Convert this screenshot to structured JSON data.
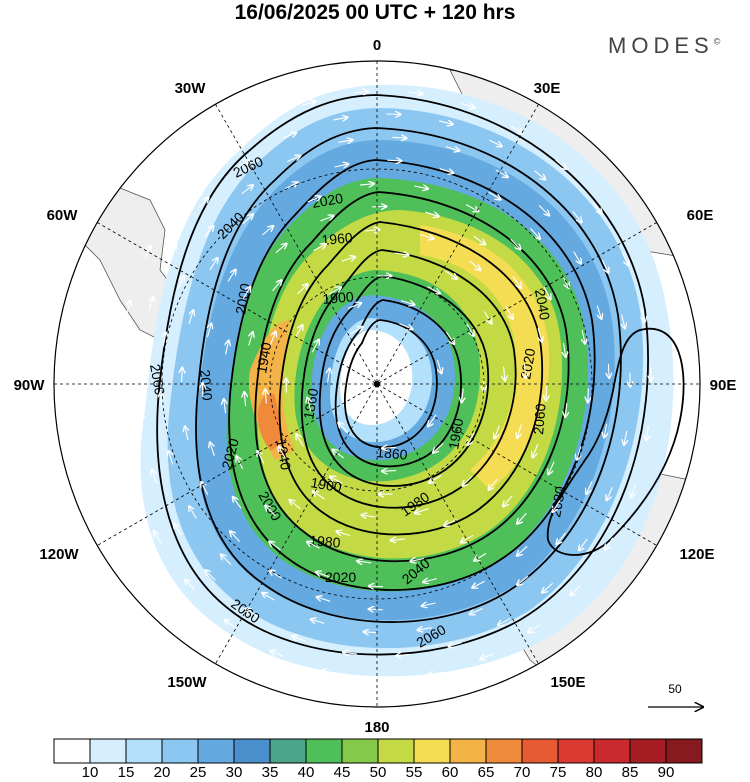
{
  "title": "16/06/2025  00 UTC  + 120 hrs",
  "brand": "MODES",
  "brand_mark": "©",
  "longitude_labels": [
    "0",
    "30E",
    "60E",
    "90E",
    "120E",
    "150E",
    "180",
    "150W",
    "120W",
    "90W",
    "60W",
    "30W"
  ],
  "reference_vector_label": "50",
  "colorbar": {
    "values": [
      "10",
      "15",
      "20",
      "25",
      "30",
      "35",
      "40",
      "45",
      "50",
      "55",
      "60",
      "65",
      "70",
      "75",
      "80",
      "85",
      "90"
    ],
    "colors": [
      "#ffffff",
      "#d6efff",
      "#b3e0fb",
      "#8cc7f1",
      "#64a9e0",
      "#4b8fcc",
      "#4ba58a",
      "#4ebf59",
      "#85c94a",
      "#c4da45",
      "#f4dc53",
      "#f4b346",
      "#ef8a3a",
      "#e65b34",
      "#db3a32",
      "#c82a2e",
      "#a61e24",
      "#861a1e"
    ]
  },
  "contours": [
    {
      "label": "1860"
    },
    {
      "label": "1900"
    },
    {
      "label": "1940"
    },
    {
      "label": "1960"
    },
    {
      "label": "1980"
    },
    {
      "label": "2000"
    },
    {
      "label": "2020"
    },
    {
      "label": "2040"
    },
    {
      "label": "2060"
    },
    {
      "label": "2080"
    }
  ],
  "colors": {
    "land": "#eeeeee",
    "coast": "#555555",
    "contour": "#000000",
    "grid": "#000000",
    "vector": "#ffffff"
  }
}
